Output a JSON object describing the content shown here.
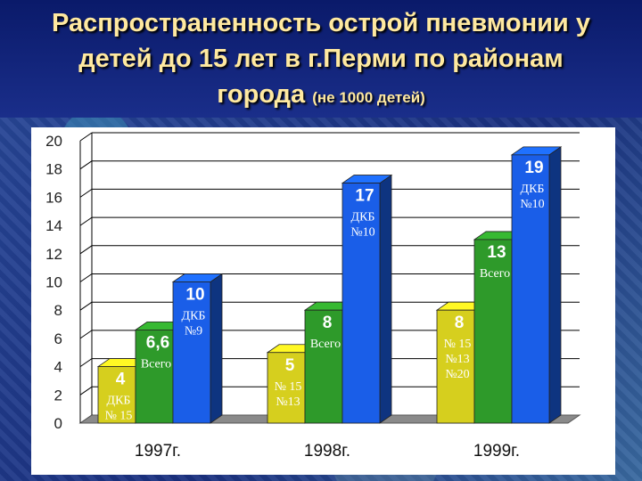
{
  "title": {
    "line1": "Распространенность острой пневмонии у",
    "line2": "детей до 15 лет в г.Перми по районам",
    "line3_main": "города",
    "line3_sub": "(не 1000 детей)"
  },
  "colors": {
    "yellow": "#d6cf1e",
    "green": "#2e9a2a",
    "blue": "#1a5ee8",
    "floor": "#8a8a8a"
  },
  "chart_data": {
    "type": "bar",
    "title": "Распространенность острой пневмонии у детей до 15 лет в г.Перми по районам города (не 1000 детей)",
    "categories": [
      "1997г.",
      "1998г.",
      "1999г."
    ],
    "series": [
      {
        "values": [
          4,
          5,
          8
        ],
        "color": "yellow"
      },
      {
        "values": [
          6.6,
          8,
          13
        ],
        "color": "green"
      },
      {
        "values": [
          10,
          17,
          19
        ],
        "color": "blue"
      }
    ],
    "value_labels": [
      [
        "4",
        "6,6",
        "10"
      ],
      [
        "5",
        "8",
        "17"
      ],
      [
        "8",
        "13",
        "19"
      ]
    ],
    "ylim": [
      0,
      20
    ],
    "yticks": [
      0,
      2,
      4,
      6,
      8,
      10,
      12,
      14,
      16,
      18,
      20
    ],
    "grid": true,
    "style": "3d",
    "annotations": [
      [
        "ДКБ\n№ 15",
        "Всего",
        "ДКБ\n№9"
      ],
      [
        "№ 15\n№13",
        "Всего",
        "ДКБ\n№10"
      ],
      [
        "№ 15\n№13\n№20",
        "Всего",
        "ДКБ\n№10"
      ]
    ]
  }
}
